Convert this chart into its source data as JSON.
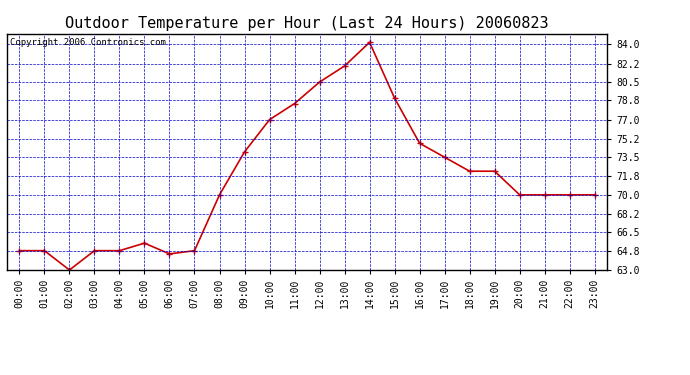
{
  "title": "Outdoor Temperature per Hour (Last 24 Hours) 20060823",
  "copyright": "Copyright 2006 Contronics.com",
  "hours": [
    "00:00",
    "01:00",
    "02:00",
    "03:00",
    "04:00",
    "05:00",
    "06:00",
    "07:00",
    "08:00",
    "09:00",
    "10:00",
    "11:00",
    "12:00",
    "13:00",
    "14:00",
    "15:00",
    "16:00",
    "17:00",
    "18:00",
    "19:00",
    "20:00",
    "21:00",
    "22:00",
    "23:00"
  ],
  "temperatures": [
    64.8,
    64.8,
    63.0,
    64.8,
    64.8,
    65.5,
    64.5,
    64.8,
    70.0,
    74.0,
    77.0,
    78.5,
    80.5,
    82.0,
    84.2,
    79.0,
    74.8,
    73.5,
    72.2,
    72.2,
    70.0,
    70.0,
    70.0,
    70.0
  ],
  "line_color": "#cc0000",
  "marker": "+",
  "marker_color": "#cc0000",
  "bg_color": "#ffffff",
  "plot_bg_color": "#ffffff",
  "grid_color": "#0000cc",
  "border_color": "#000000",
  "title_color": "#000000",
  "ylim": [
    63.0,
    85.0
  ],
  "yticks": [
    63.0,
    64.8,
    66.5,
    68.2,
    70.0,
    71.8,
    73.5,
    75.2,
    77.0,
    78.8,
    80.5,
    82.2,
    84.0
  ],
  "title_fontsize": 11,
  "tick_fontsize": 7,
  "copyright_fontsize": 6.5
}
